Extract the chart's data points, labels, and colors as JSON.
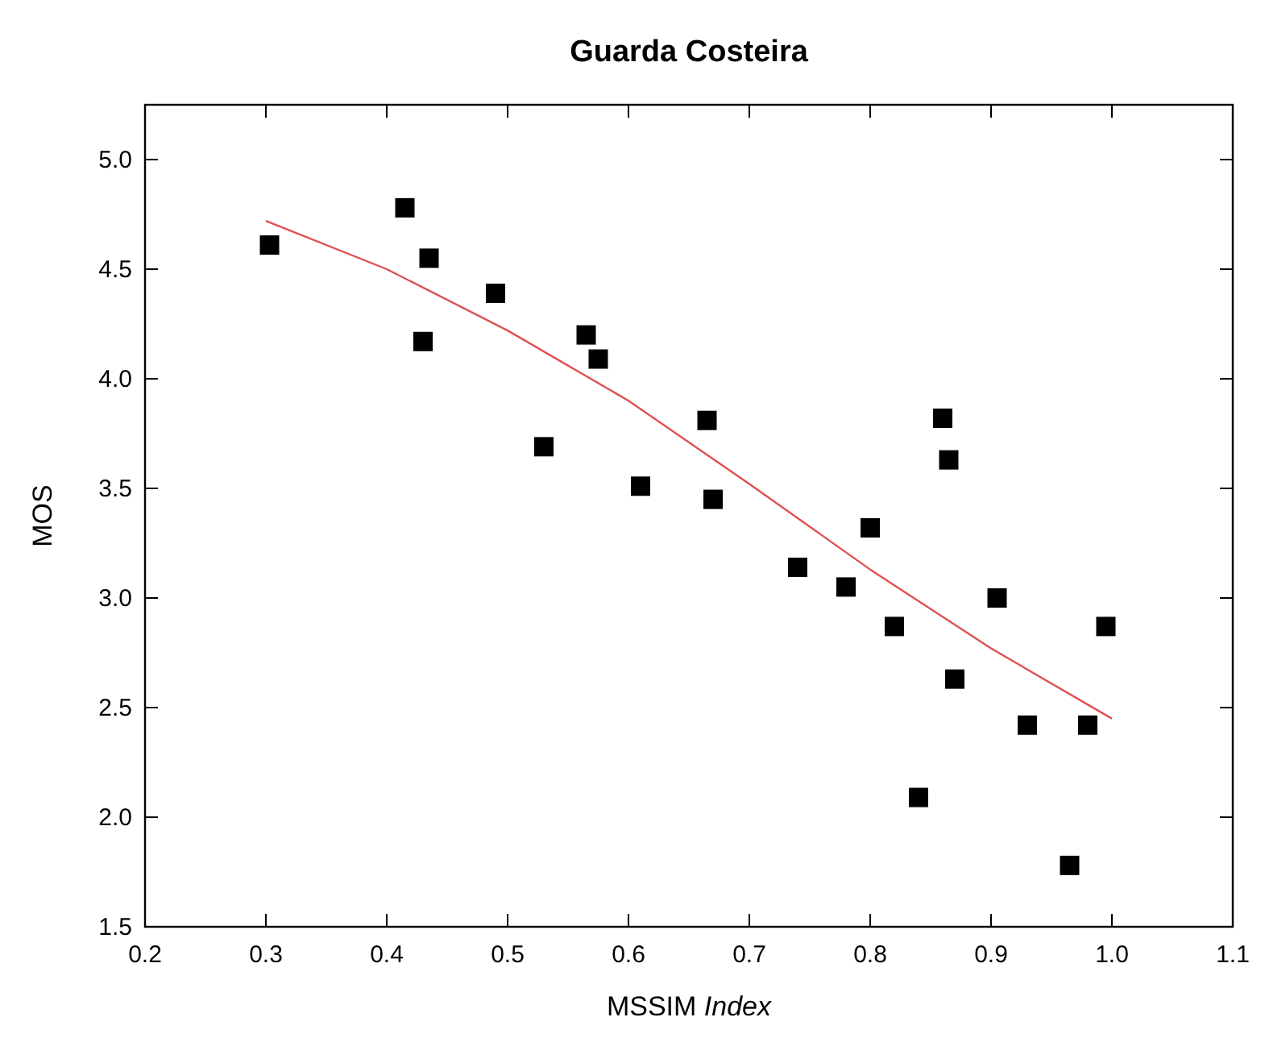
{
  "chart_data": {
    "type": "scatter",
    "title": "Guarda Costeira",
    "xlabel": "MSSIM Index",
    "ylabel": "MOS",
    "xlim": [
      0.2,
      1.1
    ],
    "ylim": [
      1.5,
      5.25
    ],
    "xticks": [
      0.2,
      0.3,
      0.4,
      0.5,
      0.6,
      0.7,
      0.8,
      0.9,
      {
        "value": 1.0,
        "label": "1.0"
      },
      1.1
    ],
    "yticks": [
      1.5,
      {
        "value": 2,
        "label": "2.0"
      },
      2.5,
      {
        "value": 3,
        "label": "3.0"
      },
      3.5,
      {
        "value": 4,
        "label": "4.0"
      },
      4.5,
      {
        "value": 5,
        "label": "5.0"
      }
    ],
    "grid": false,
    "series": [
      {
        "marker": "square",
        "color": "#000000",
        "x": [
          0.303,
          0.415,
          0.435,
          0.43,
          0.49,
          0.53,
          0.565,
          0.575,
          0.61,
          0.665,
          0.67,
          0.74,
          0.78,
          0.8,
          0.82,
          0.84,
          0.86,
          0.865,
          0.87,
          0.905,
          0.93,
          0.965,
          0.98,
          0.995
        ],
        "values": [
          4.61,
          4.78,
          4.55,
          4.17,
          4.39,
          3.69,
          4.2,
          4.09,
          3.51,
          3.81,
          3.45,
          3.14,
          3.05,
          3.32,
          2.87,
          2.09,
          3.82,
          3.63,
          2.63,
          3.0,
          2.42,
          1.78,
          2.42,
          2.87
        ]
      },
      {
        "type": "line",
        "marker": "none",
        "color": "#e05050",
        "x": [
          0.3,
          0.4,
          0.5,
          0.6,
          0.7,
          0.8,
          0.9,
          1.0
        ],
        "values": [
          4.72,
          4.5,
          4.22,
          3.9,
          3.52,
          3.13,
          2.77,
          2.45
        ]
      }
    ]
  }
}
